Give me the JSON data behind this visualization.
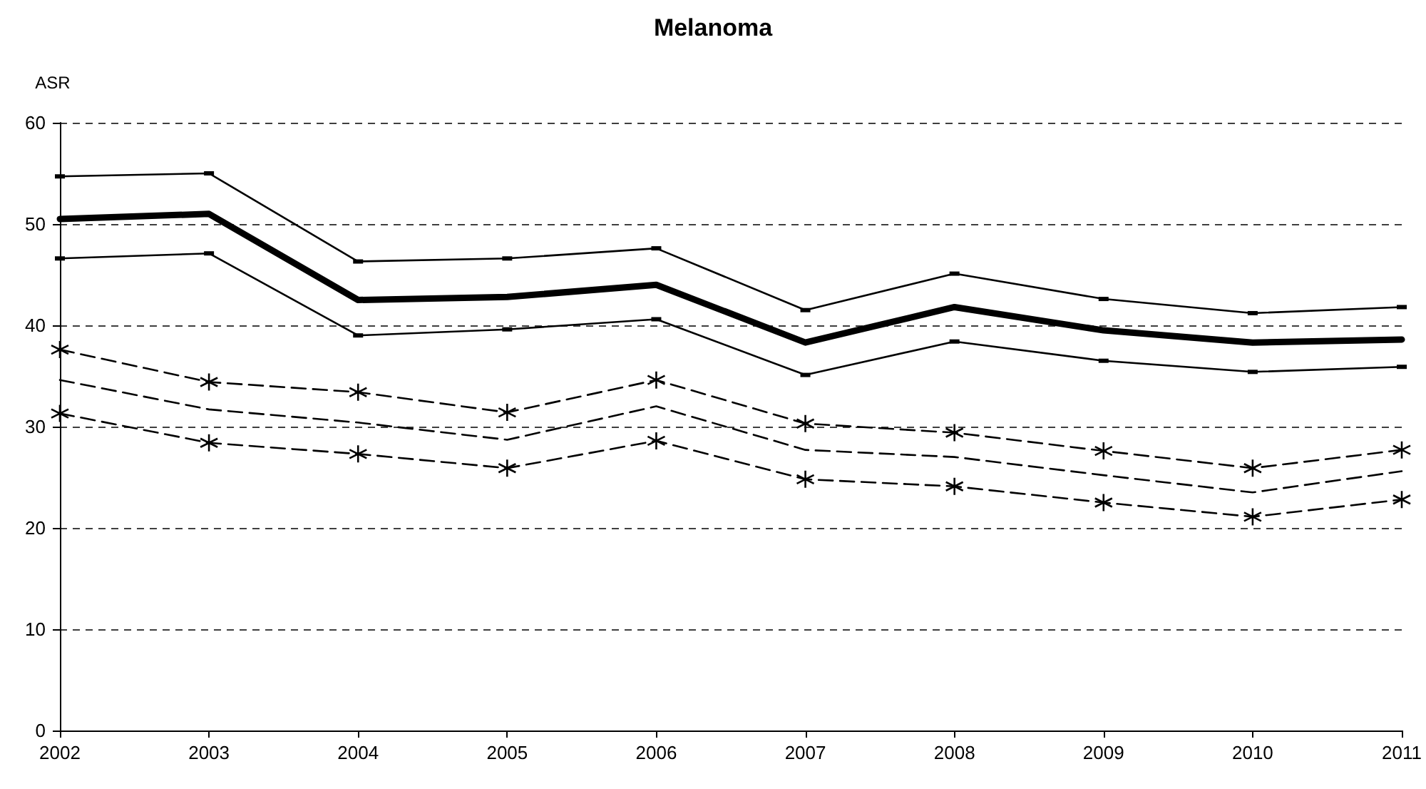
{
  "chart_data": {
    "type": "line",
    "title": "Melanoma",
    "ylabel": "ASR",
    "categories": [
      "2002",
      "2003",
      "2004",
      "2005",
      "2006",
      "2007",
      "2008",
      "2009",
      "2010",
      "2011"
    ],
    "series": [
      {
        "color": "#000000",
        "marker": "square",
        "line_style": "solid",
        "values": [
          54.7,
          55,
          46.3,
          46.6,
          47.6,
          41.5,
          45.1,
          42.6,
          41.2,
          41.8
        ]
      },
      {
        "color": "#000000",
        "marker": "none",
        "line_style": "solid",
        "values": [
          50.5,
          51,
          42.5,
          42.8,
          44,
          38.3,
          41.8,
          39.5,
          38.3,
          38.6
        ]
      },
      {
        "color": "#000000",
        "marker": "square",
        "line_style": "solid",
        "values": [
          46.6,
          47.1,
          39,
          39.6,
          40.6,
          35.1,
          38.4,
          36.5,
          35.4,
          35.9
        ]
      },
      {
        "color": "#000000",
        "marker": "cross",
        "line_style": "dashed",
        "values": [
          37.6,
          34.4,
          33.4,
          31.4,
          34.6,
          30.3,
          29.4,
          27.6,
          25.9,
          27.7
        ]
      },
      {
        "color": "#000000",
        "marker": "none",
        "line_style": "dashed",
        "values": [
          34.6,
          31.7,
          30.4,
          28.7,
          32,
          27.7,
          27,
          25.2,
          23.5,
          25.6
        ]
      },
      {
        "color": "#000000",
        "marker": "cross",
        "line_style": "dashed",
        "values": [
          31.3,
          28.4,
          27.3,
          25.9,
          28.6,
          24.8,
          24.1,
          22.5,
          21.1,
          22.8
        ]
      }
    ],
    "ylim": [
      0,
      60
    ],
    "yticks": [
      0,
      10,
      20,
      30,
      40,
      50,
      60
    ],
    "grid": "y"
  }
}
